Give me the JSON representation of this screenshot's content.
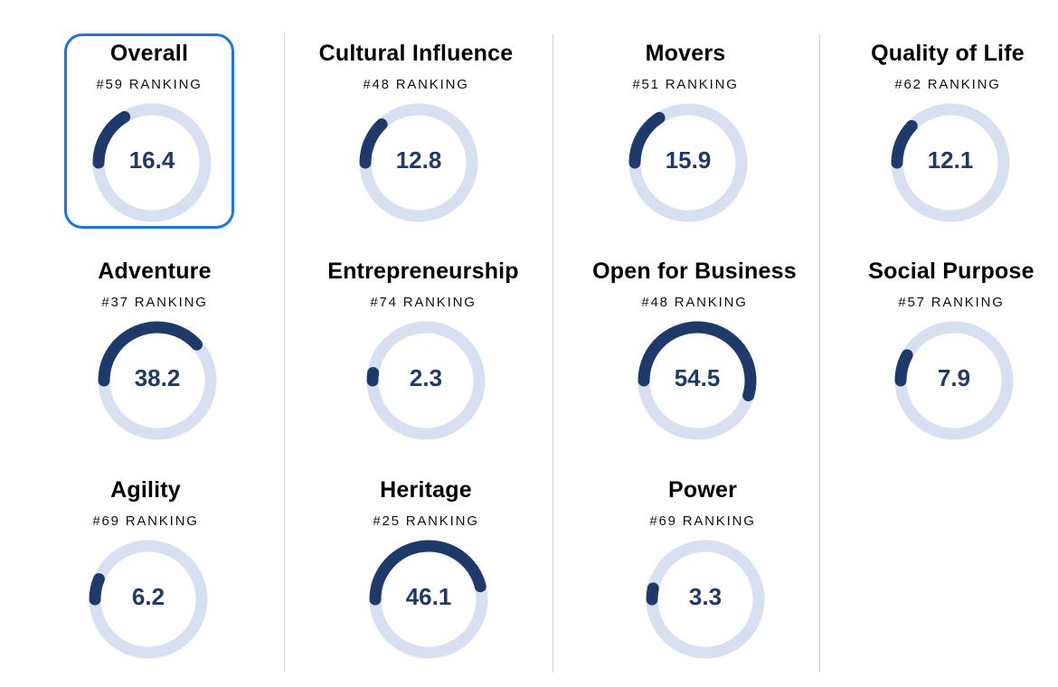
{
  "colors": {
    "track": "#d8dff0",
    "fill": "#1e3a6b",
    "selected_border": "#1a73f0"
  },
  "selected": "overall",
  "metrics": [
    {
      "id": "overall",
      "title": "Overall",
      "rank": "#59 RANKING",
      "value": "16.4",
      "fill_fraction": 0.164
    },
    {
      "id": "cultural-influence",
      "title": "Cultural Influence",
      "rank": "#48 RANKING",
      "value": "12.8",
      "fill_fraction": 0.128
    },
    {
      "id": "movers",
      "title": "Movers",
      "rank": "#51 RANKING",
      "value": "15.9",
      "fill_fraction": 0.159
    },
    {
      "id": "quality-of-life",
      "title": "Quality of Life",
      "rank": "#62 RANKING",
      "value": "12.1",
      "fill_fraction": 0.121
    },
    {
      "id": "adventure",
      "title": "Adventure",
      "rank": "#37 RANKING",
      "value": "38.2",
      "fill_fraction": 0.382
    },
    {
      "id": "entrepreneurship",
      "title": "Entrepreneurship",
      "rank": "#74 RANKING",
      "value": "2.3",
      "fill_fraction": 0.023
    },
    {
      "id": "open-for-business",
      "title": "Open for Business",
      "rank": "#48 RANKING",
      "value": "54.5",
      "fill_fraction": 0.545
    },
    {
      "id": "social-purpose",
      "title": "Social Purpose",
      "rank": "#57 RANKING",
      "value": "7.9",
      "fill_fraction": 0.079
    },
    {
      "id": "agility",
      "title": "Agility",
      "rank": "#69 RANKING",
      "value": "6.2",
      "fill_fraction": 0.062
    },
    {
      "id": "heritage",
      "title": "Heritage",
      "rank": "#25 RANKING",
      "value": "46.1",
      "fill_fraction": 0.461
    },
    {
      "id": "power",
      "title": "Power",
      "rank": "#69 RANKING",
      "value": "3.3",
      "fill_fraction": 0.033
    }
  ]
}
